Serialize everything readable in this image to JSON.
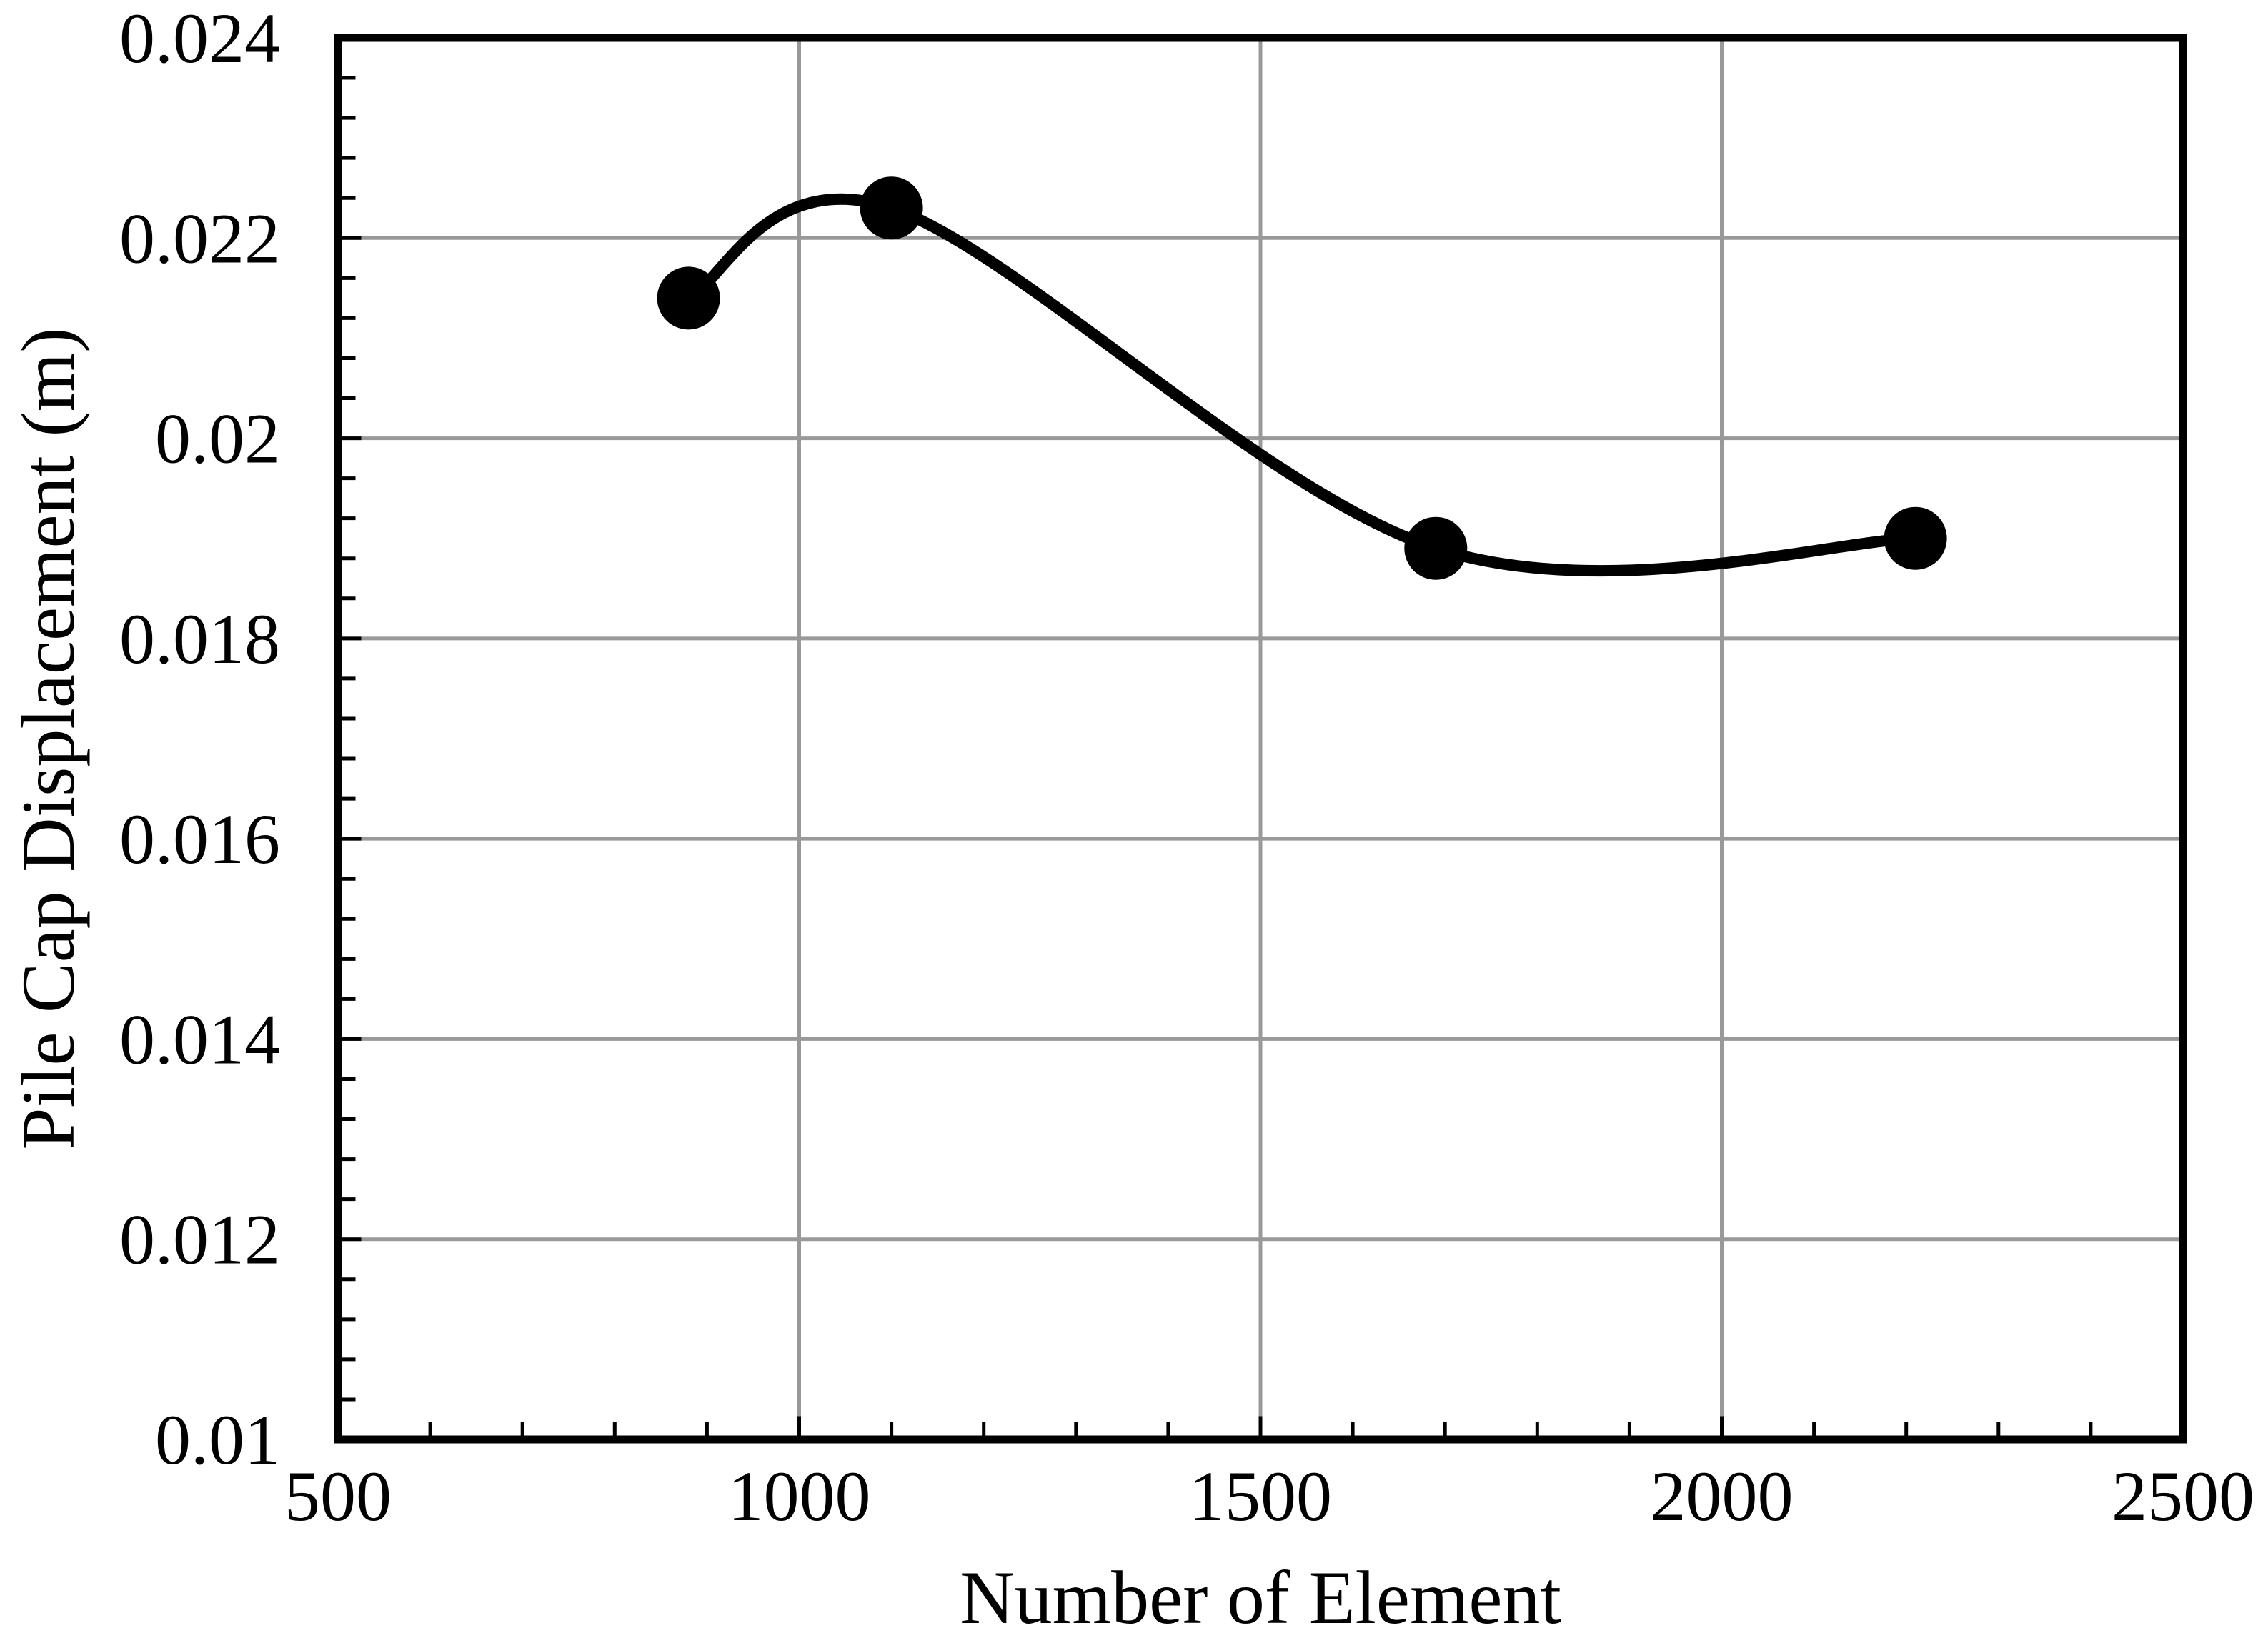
{
  "chart_data": {
    "type": "line",
    "title": "",
    "xlabel": "Number of Element",
    "ylabel": "Pile Cap Displacement (m)",
    "series": [
      {
        "x": [
          880,
          1100,
          1690,
          2210
        ],
        "y": [
          0.0214,
          0.0223,
          0.0189,
          0.019
        ]
      }
    ],
    "xlim": [
      500,
      2500
    ],
    "ylim": [
      0.01,
      0.024
    ],
    "x_major_ticks": [
      500,
      1000,
      1500,
      2000,
      2500
    ],
    "x_tick_labels": [
      "500",
      "1000",
      "1500",
      "2000",
      "2500"
    ],
    "x_minor_step": 100,
    "y_major_ticks": [
      0.01,
      0.012,
      0.014,
      0.016,
      0.018,
      0.02,
      0.022,
      0.024
    ],
    "y_tick_labels": [
      "0.01",
      "0.012",
      "0.014",
      "0.016",
      "0.018",
      "0.02",
      "0.022",
      "0.024"
    ],
    "y_minor_step": 0.0004,
    "grid": true,
    "legend_position": "none",
    "marker": "circle",
    "line_style": "smooth",
    "colors": {
      "line": "#000000",
      "marker": "#000000",
      "grid": "#999999",
      "frame": "#000000",
      "text": "#000000",
      "background": "#ffffff"
    }
  }
}
